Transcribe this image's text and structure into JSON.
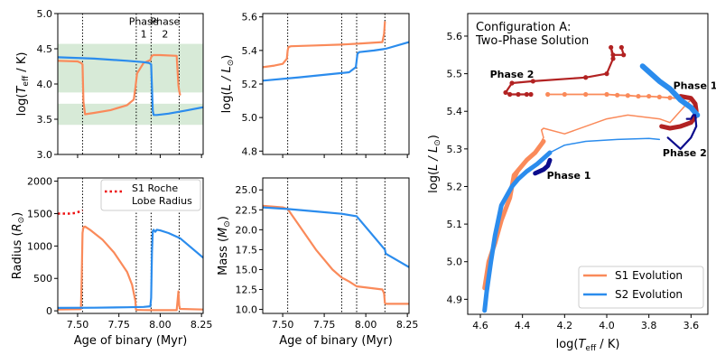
{
  "chart_data": [
    {
      "id": "teff_panel",
      "type": "line",
      "ylabel_pre": "log(",
      "ylabel_var": "T",
      "ylabel_sub": "eff",
      "ylabel_post": " / K)",
      "xlim": [
        7.38,
        8.26
      ],
      "ylim": [
        3.0,
        5.0
      ],
      "xticks": [
        7.5,
        7.75,
        8.0,
        8.25
      ],
      "yticks": [
        3.0,
        3.5,
        4.0,
        4.5,
        5.0
      ],
      "xticklabels": [
        "",
        "",
        "",
        ""
      ],
      "yticklabels": [
        "3.0",
        "3.5",
        "4.0",
        "4.5",
        "5.0"
      ],
      "bands": [
        {
          "y0": 3.88,
          "y1": 4.57,
          "color": "#b7d9b7"
        },
        {
          "y0": 3.42,
          "y1": 3.72,
          "color": "#b7d9b7"
        }
      ],
      "vlines": [
        7.53,
        7.855,
        7.945,
        8.115
      ],
      "annotations": [
        {
          "text": "Phase",
          "x": 7.9,
          "y": 4.84
        },
        {
          "text": "1",
          "x": 7.9,
          "y": 4.66
        },
        {
          "text": "Phase",
          "x": 8.03,
          "y": 4.84
        },
        {
          "text": "2",
          "x": 8.03,
          "y": 4.66
        }
      ],
      "series": [
        {
          "name": "S1",
          "color": "#fa8a5a",
          "width": 2.2,
          "x": [
            7.38,
            7.5,
            7.52,
            7.53,
            7.535,
            7.545,
            7.6,
            7.7,
            7.8,
            7.84,
            7.85,
            7.855,
            7.86,
            7.9,
            7.94,
            7.945,
            7.95,
            7.96,
            8.0,
            8.1,
            8.11,
            8.115,
            8.12
          ],
          "y": [
            4.33,
            4.32,
            4.3,
            4.28,
            3.75,
            3.57,
            3.59,
            3.63,
            3.7,
            3.78,
            3.95,
            4.05,
            4.15,
            4.3,
            4.34,
            4.38,
            4.4,
            4.41,
            4.41,
            4.4,
            3.98,
            3.9,
            3.85
          ]
        },
        {
          "name": "S2",
          "color": "#2b8ced",
          "width": 2.2,
          "x": [
            7.38,
            7.6,
            7.8,
            7.9,
            7.93,
            7.945,
            7.95,
            7.955,
            7.96,
            7.98,
            8.05,
            8.15,
            8.26
          ],
          "y": [
            4.38,
            4.36,
            4.33,
            4.31,
            4.3,
            4.28,
            3.95,
            3.62,
            3.56,
            3.56,
            3.58,
            3.62,
            3.67
          ]
        }
      ]
    },
    {
      "id": "lum_panel",
      "type": "line",
      "ylabel_pre": "log(",
      "ylabel_var": "L / L",
      "ylabel_sub": "⊙",
      "ylabel_post": ")",
      "xlim": [
        7.38,
        8.26
      ],
      "ylim": [
        4.78,
        5.62
      ],
      "xticks": [
        7.5,
        7.75,
        8.0,
        8.25
      ],
      "yticks": [
        4.8,
        5.0,
        5.2,
        5.4,
        5.6
      ],
      "xticklabels": [
        "",
        "",
        "",
        ""
      ],
      "yticklabels": [
        "4.8",
        "5.0",
        "5.2",
        "5.4",
        "5.6"
      ],
      "vlines": [
        7.53,
        7.855,
        7.945,
        8.115
      ],
      "series": [
        {
          "name": "S1",
          "color": "#fa8a5a",
          "width": 2.2,
          "x": [
            7.38,
            7.45,
            7.5,
            7.525,
            7.53,
            7.535,
            7.55,
            7.7,
            7.85,
            7.95,
            8.1,
            8.11,
            8.115
          ],
          "y": [
            5.3,
            5.31,
            5.32,
            5.35,
            5.4,
            5.42,
            5.425,
            5.43,
            5.435,
            5.44,
            5.45,
            5.5,
            5.57
          ]
        },
        {
          "name": "S2",
          "color": "#2b8ced",
          "width": 2.2,
          "x": [
            7.38,
            7.6,
            7.8,
            7.9,
            7.94,
            7.945,
            7.95,
            7.96,
            8.05,
            8.12,
            8.26
          ],
          "y": [
            5.22,
            5.24,
            5.26,
            5.27,
            5.3,
            5.34,
            5.38,
            5.39,
            5.4,
            5.41,
            5.45
          ]
        }
      ]
    },
    {
      "id": "radius_panel",
      "type": "line",
      "ylabel_pre": "Radius (",
      "ylabel_var": "R",
      "ylabel_sub": "⊙",
      "ylabel_post": ")",
      "xlabel": "Age of binary (Myr)",
      "xlim": [
        7.38,
        8.26
      ],
      "ylim": [
        -40,
        2050
      ],
      "xticks": [
        7.5,
        7.75,
        8.0,
        8.25
      ],
      "yticks": [
        0,
        500,
        1000,
        1500,
        2000
      ],
      "xticklabels": [
        "7.50",
        "7.75",
        "8.00",
        "8.25"
      ],
      "yticklabels": [
        "0",
        "500",
        "1000",
        "1500",
        "2000"
      ],
      "vlines": [
        7.53,
        7.855,
        7.945,
        8.115
      ],
      "legend": {
        "entries": [
          "S1 Roche",
          "Lobe Radius"
        ],
        "color": "#ee1111"
      },
      "roche": {
        "x": [
          7.38,
          7.45,
          7.49,
          7.52,
          7.53
        ],
        "y": [
          1500,
          1500,
          1510,
          1540,
          1550
        ]
      },
      "series": [
        {
          "name": "S1",
          "color": "#fa8a5a",
          "width": 2.2,
          "x": [
            7.38,
            7.52,
            7.525,
            7.53,
            7.535,
            7.545,
            7.58,
            7.65,
            7.72,
            7.8,
            7.83,
            7.85,
            7.853,
            7.86,
            7.9,
            7.945,
            8.1,
            8.105,
            8.11,
            8.115,
            8.12,
            8.26
          ],
          "y": [
            20,
            25,
            500,
            1200,
            1290,
            1300,
            1240,
            1100,
            900,
            600,
            400,
            150,
            20,
            15,
            12,
            10,
            10,
            150,
            300,
            80,
            30,
            20
          ]
        },
        {
          "name": "S2",
          "color": "#2b8ced",
          "width": 2.2,
          "x": [
            7.38,
            7.6,
            7.8,
            7.9,
            7.94,
            7.945,
            7.95,
            7.955,
            7.96,
            7.97,
            7.98,
            8.0,
            8.05,
            8.12,
            8.26
          ],
          "y": [
            45,
            48,
            55,
            60,
            70,
            200,
            900,
            1230,
            1250,
            1220,
            1250,
            1240,
            1200,
            1120,
            820
          ]
        }
      ]
    },
    {
      "id": "mass_panel",
      "type": "line",
      "ylabel_pre": "Mass (",
      "ylabel_var": "M",
      "ylabel_sub": "⊙",
      "ylabel_post": ")",
      "xlabel": "Age of binary (Myr)",
      "xlim": [
        7.38,
        8.26
      ],
      "ylim": [
        9.5,
        26.5
      ],
      "xticks": [
        7.5,
        7.75,
        8.0,
        8.25
      ],
      "yticks": [
        10.0,
        12.5,
        15.0,
        17.5,
        20.0,
        22.5,
        25.0
      ],
      "xticklabels": [
        "7.50",
        "7.75",
        "8.00",
        "8.25"
      ],
      "yticklabels": [
        "10.0",
        "12.5",
        "15.0",
        "17.5",
        "20.0",
        "22.5",
        "25.0"
      ],
      "vlines": [
        7.53,
        7.855,
        7.945,
        8.115
      ],
      "series": [
        {
          "name": "S1",
          "color": "#fa8a5a",
          "width": 2.2,
          "x": [
            7.38,
            7.5,
            7.53,
            7.6,
            7.7,
            7.8,
            7.855,
            7.9,
            7.945,
            8.1,
            8.11,
            8.115,
            8.12,
            8.26
          ],
          "y": [
            23.0,
            22.8,
            22.6,
            20.5,
            17.5,
            15.0,
            14.0,
            13.5,
            12.9,
            12.5,
            12.0,
            10.8,
            10.7,
            10.7
          ]
        },
        {
          "name": "S2",
          "color": "#2b8ced",
          "width": 2.2,
          "x": [
            7.38,
            7.53,
            7.7,
            7.855,
            7.945,
            8.115,
            8.12,
            8.26
          ],
          "y": [
            22.8,
            22.6,
            22.3,
            22.0,
            21.7,
            17.5,
            17.0,
            15.3
          ]
        }
      ]
    },
    {
      "id": "hr_panel",
      "type": "line",
      "title_lines": [
        "Configuration A:",
        "Two-Phase Solution"
      ],
      "xlabel_pre": "log(",
      "xlabel_var": "T",
      "xlabel_sub": "eff",
      "xlabel_post": " / K)",
      "ylabel_pre": "log(",
      "ylabel_var": "L / L",
      "ylabel_sub": "⊙",
      "ylabel_post": ")",
      "xlim": [
        4.66,
        3.52
      ],
      "ylim": [
        4.86,
        5.66
      ],
      "xticks": [
        4.6,
        4.4,
        4.2,
        4.0,
        3.8,
        3.6
      ],
      "yticks": [
        4.9,
        5.0,
        5.1,
        5.2,
        5.3,
        5.4,
        5.5,
        5.6
      ],
      "xticklabels": [
        "4.6",
        "4.4",
        "4.2",
        "4.0",
        "3.8",
        "3.6"
      ],
      "yticklabels": [
        "4.9",
        "5.0",
        "5.1",
        "5.2",
        "5.3",
        "5.4",
        "5.5",
        "5.6"
      ],
      "legend": {
        "entries": [
          "S1 Evolution",
          "S2 Evolution"
        ],
        "colors": [
          "#fa8a5a",
          "#2b8ced"
        ]
      },
      "phase_labels": [
        {
          "text": "Phase 2",
          "x": 4.45,
          "y": 5.49,
          "color": "#b22222"
        },
        {
          "text": "Phase 1",
          "x": 3.58,
          "y": 5.46,
          "color": "#b22222"
        },
        {
          "text": "Phase 1",
          "x": 4.18,
          "y": 5.22,
          "color": "#0c0c8c"
        },
        {
          "text": "Phase 2",
          "x": 3.63,
          "y": 5.28,
          "color": "#0c0c8c"
        }
      ],
      "series": [
        {
          "name": "S1 thin",
          "color": "#fa8a5a",
          "width": 1.5,
          "x": [
            4.58,
            4.56,
            4.5,
            4.45,
            4.4,
            4.33,
            4.3,
            4.31,
            4.3,
            4.2,
            4.0,
            3.9,
            3.75,
            3.7,
            3.62,
            3.6
          ],
          "y": [
            4.93,
            5.0,
            5.1,
            5.2,
            5.26,
            5.3,
            5.33,
            5.35,
            5.355,
            5.34,
            5.38,
            5.39,
            5.38,
            5.37,
            5.42,
            5.43
          ]
        },
        {
          "name": "S1 thick",
          "color": "#fa8a5a",
          "width": 5,
          "x": [
            4.58,
            4.56,
            4.53,
            4.5,
            4.46,
            4.44,
            4.38,
            4.34,
            4.3
          ],
          "y": [
            4.93,
            5.0,
            5.05,
            5.11,
            5.17,
            5.23,
            5.27,
            5.29,
            5.32
          ]
        },
        {
          "name": "S1 dotted",
          "color": "#fa8a5a",
          "width": 1.8,
          "markers": true,
          "x": [
            4.28,
            4.2,
            4.1,
            4.0,
            3.95,
            3.9,
            3.85,
            3.8,
            3.75,
            3.7,
            3.65
          ],
          "y": [
            5.445,
            5.445,
            5.445,
            5.445,
            5.443,
            5.442,
            5.44,
            5.44,
            5.438,
            5.436,
            5.434
          ]
        },
        {
          "name": "S1 Phase 2 red",
          "color": "#b22222",
          "width": 2.2,
          "markers": true,
          "x": [
            3.93,
            3.92,
            3.97,
            3.98,
            3.97,
            4.0,
            4.1,
            4.35,
            4.45,
            4.48,
            4.46,
            4.42,
            4.38,
            4.36
          ],
          "y": [
            5.57,
            5.55,
            5.55,
            5.57,
            5.54,
            5.5,
            5.49,
            5.48,
            5.475,
            5.45,
            5.445,
            5.445,
            5.445,
            5.445
          ]
        },
        {
          "name": "S1 Phase 1 red",
          "color": "#b22222",
          "width": 5,
          "x": [
            3.65,
            3.6,
            3.58,
            3.575,
            3.58,
            3.6,
            3.65,
            3.7,
            3.74
          ],
          "y": [
            5.44,
            5.435,
            5.42,
            5.4,
            5.385,
            5.37,
            5.36,
            5.355,
            5.36
          ]
        },
        {
          "name": "S2 thick",
          "color": "#2b8ced",
          "width": 5,
          "x": [
            4.58,
            4.57,
            4.55,
            4.53,
            4.5,
            4.45,
            4.42,
            4.38,
            4.33,
            4.29,
            4.27
          ],
          "y": [
            4.87,
            4.92,
            5.0,
            5.07,
            5.15,
            5.2,
            5.22,
            5.24,
            5.26,
            5.28,
            5.29
          ]
        },
        {
          "name": "S2 thin",
          "color": "#2b8ced",
          "width": 1.5,
          "x": [
            4.27,
            4.2,
            4.1,
            3.95,
            3.8,
            3.75
          ],
          "y": [
            5.29,
            5.31,
            5.32,
            5.325,
            5.328,
            5.325
          ]
        },
        {
          "name": "S2 upper",
          "color": "#2b8ced",
          "width": 6,
          "x": [
            3.83,
            3.75,
            3.7,
            3.65,
            3.6,
            3.57
          ],
          "y": [
            5.52,
            5.48,
            5.46,
            5.43,
            5.41,
            5.39
          ]
        },
        {
          "name": "S2 Phase 2 navy",
          "color": "#0c0c8c",
          "width": 2.2,
          "x": [
            3.71,
            3.65,
            3.6,
            3.575,
            3.58,
            3.59,
            3.6,
            3.62
          ],
          "y": [
            5.33,
            5.3,
            5.33,
            5.36,
            5.39,
            5.39,
            5.38,
            5.38
          ]
        },
        {
          "name": "S2 Phase 1 navy",
          "color": "#0c0c8c",
          "width": 5,
          "x": [
            4.27,
            4.28,
            4.3,
            4.32,
            4.34
          ],
          "y": [
            5.27,
            5.255,
            5.245,
            5.24,
            5.235
          ]
        }
      ]
    }
  ]
}
